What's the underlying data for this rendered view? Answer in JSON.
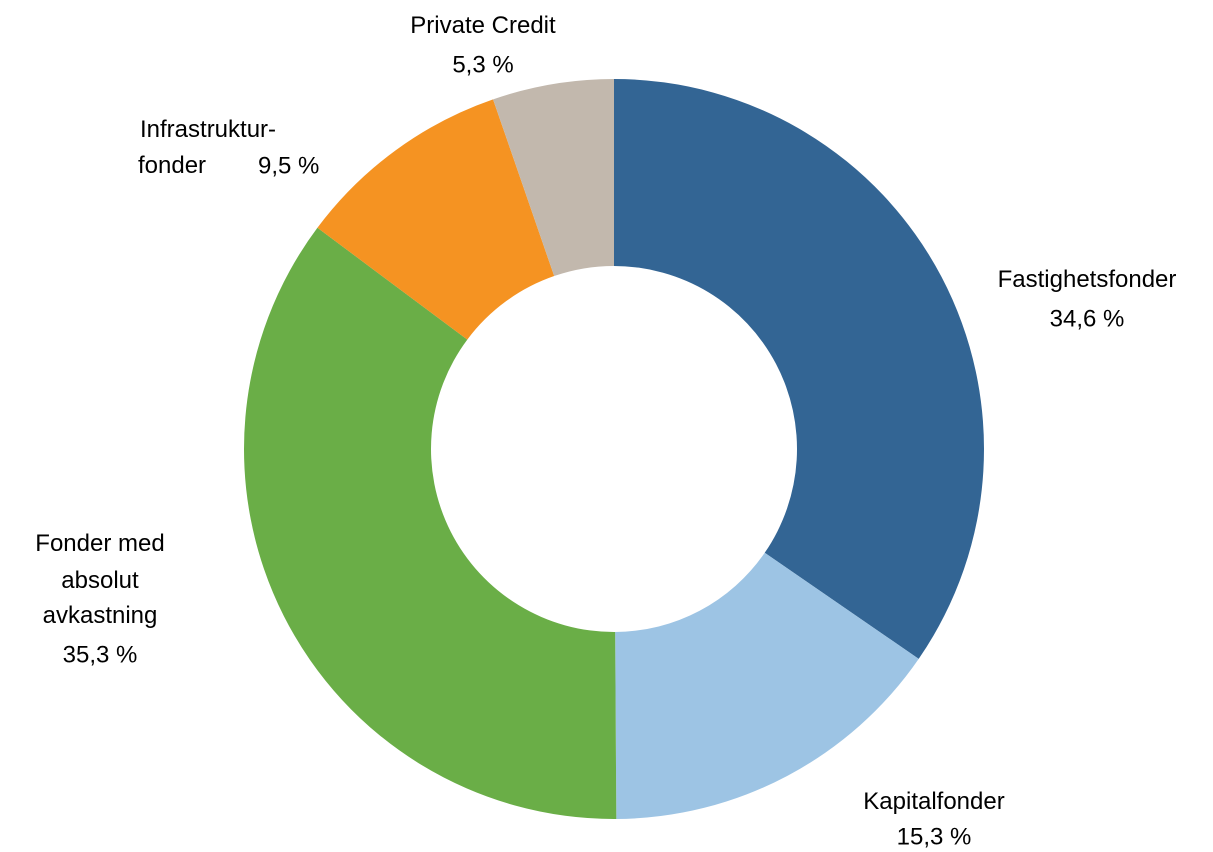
{
  "chart_data": {
    "type": "donut",
    "categories": [
      "Fastighetsfonder",
      "Kapitalfonder",
      "Fonder med\nabsolut\navkastning",
      "Infrastruktur-\nfonder",
      "Private Credit"
    ],
    "values": [
      34.6,
      15.3,
      35.3,
      9.5,
      5.3
    ],
    "value_labels": [
      "34,6 %",
      "15,3 %",
      "35,3 %",
      "9,5 %",
      "5,3 %"
    ],
    "colors": [
      "#336594",
      "#9dc4e4",
      "#6aae47",
      "#f59322",
      "#c2b8ad"
    ]
  }
}
